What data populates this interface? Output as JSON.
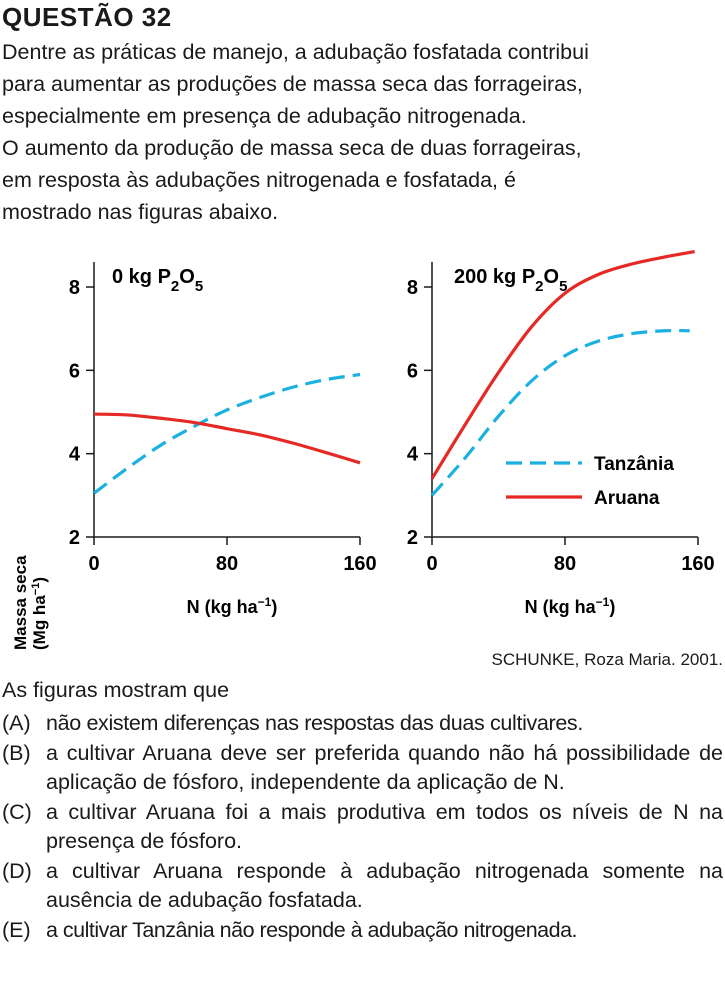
{
  "question": {
    "title": "QUESTÃO 32",
    "stem_lines": [
      "Dentre as práticas de manejo, a adubação fosfatada contribui",
      "para aumentar as produções de massa seca das forrageiras,",
      "especialmente em presença de adubação nitrogenada.",
      "O aumento da produção de massa seca de duas forrageiras,",
      "em resposta às adubações nitrogenada e fosfatada, é",
      "mostrado nas figuras abaixo."
    ],
    "source": "SCHUNKE, Roza Maria. 2001.",
    "prompt": "As figuras mostram que",
    "options": [
      {
        "letter": "(A)",
        "text": "não existem diferenças nas respostas das duas cultivares."
      },
      {
        "letter": "(B)",
        "text": "a cultivar Aruana deve ser preferida quando não há possibilidade de aplicação de fósforo, independente da aplicação de N."
      },
      {
        "letter": "(C)",
        "text": "a cultivar Aruana foi a mais produtiva em todos os níveis de N na presença de fósforo."
      },
      {
        "letter": "(D)",
        "text": "a cultivar Aruana responde à adubação nitrogenada somente na ausência de adubação fosfatada."
      },
      {
        "letter": "(E)",
        "text": "a cultivar Tanzânia não responde à adubação nitrogenada."
      }
    ]
  },
  "colors": {
    "tanzania": "#1ab0e0",
    "aruana": "#e52a26",
    "axis": "#1a1a1a"
  },
  "chart_data": [
    {
      "type": "line",
      "title": "0 kg P2O5",
      "title_parts": {
        "main": "0 kg P",
        "sub1": "2",
        "mid": "O",
        "sub2": "5"
      },
      "xlabel": "N (kg ha−1)",
      "xlabel_parts": {
        "main": "N (kg ha",
        "sup": "−1",
        "end": ")"
      },
      "ylabel_line1": "Massa seca",
      "ylabel_line2_parts": {
        "main": "(Mg ha",
        "sup": "−1",
        "end": ")"
      },
      "xlim": [
        0,
        160
      ],
      "ylim": [
        2,
        8.6
      ],
      "xticks": [
        0,
        80,
        160
      ],
      "yticks": [
        2,
        4,
        6,
        8
      ],
      "series": [
        {
          "name": "Tanzânia",
          "style": "dashed",
          "x": [
            0,
            20,
            40,
            60,
            80,
            100,
            120,
            140,
            160
          ],
          "y": [
            3.05,
            3.65,
            4.2,
            4.65,
            5.05,
            5.35,
            5.6,
            5.78,
            5.9
          ]
        },
        {
          "name": "Aruana",
          "style": "solid",
          "x": [
            0,
            20,
            40,
            60,
            80,
            100,
            120,
            140,
            160
          ],
          "y": [
            4.95,
            4.93,
            4.85,
            4.75,
            4.6,
            4.45,
            4.25,
            4.02,
            3.78
          ]
        }
      ]
    },
    {
      "type": "line",
      "title": "200 kg P2O5",
      "title_parts": {
        "main": "200 kg P",
        "sub1": "2",
        "mid": "O",
        "sub2": "5"
      },
      "xlabel": "N (kg ha−1)",
      "xlabel_parts": {
        "main": "N (kg ha",
        "sup": "−1",
        "end": ")"
      },
      "xlim": [
        0,
        160
      ],
      "ylim": [
        2,
        8.6
      ],
      "xticks": [
        0,
        80,
        160
      ],
      "yticks": [
        2,
        4,
        6,
        8
      ],
      "legend": {
        "placement": "center-right",
        "entries": [
          "Tanzânia",
          "Aruana"
        ]
      },
      "series": [
        {
          "name": "Tanzânia",
          "style": "dashed",
          "x": [
            0,
            20,
            40,
            60,
            80,
            100,
            120,
            140,
            155
          ],
          "y": [
            3.0,
            3.9,
            4.9,
            5.75,
            6.35,
            6.7,
            6.88,
            6.95,
            6.95
          ]
        },
        {
          "name": "Aruana",
          "style": "solid",
          "x": [
            0,
            20,
            40,
            60,
            80,
            100,
            120,
            140,
            158
          ],
          "y": [
            3.4,
            4.7,
            5.95,
            7.05,
            7.85,
            8.3,
            8.55,
            8.72,
            8.85
          ]
        }
      ]
    }
  ]
}
